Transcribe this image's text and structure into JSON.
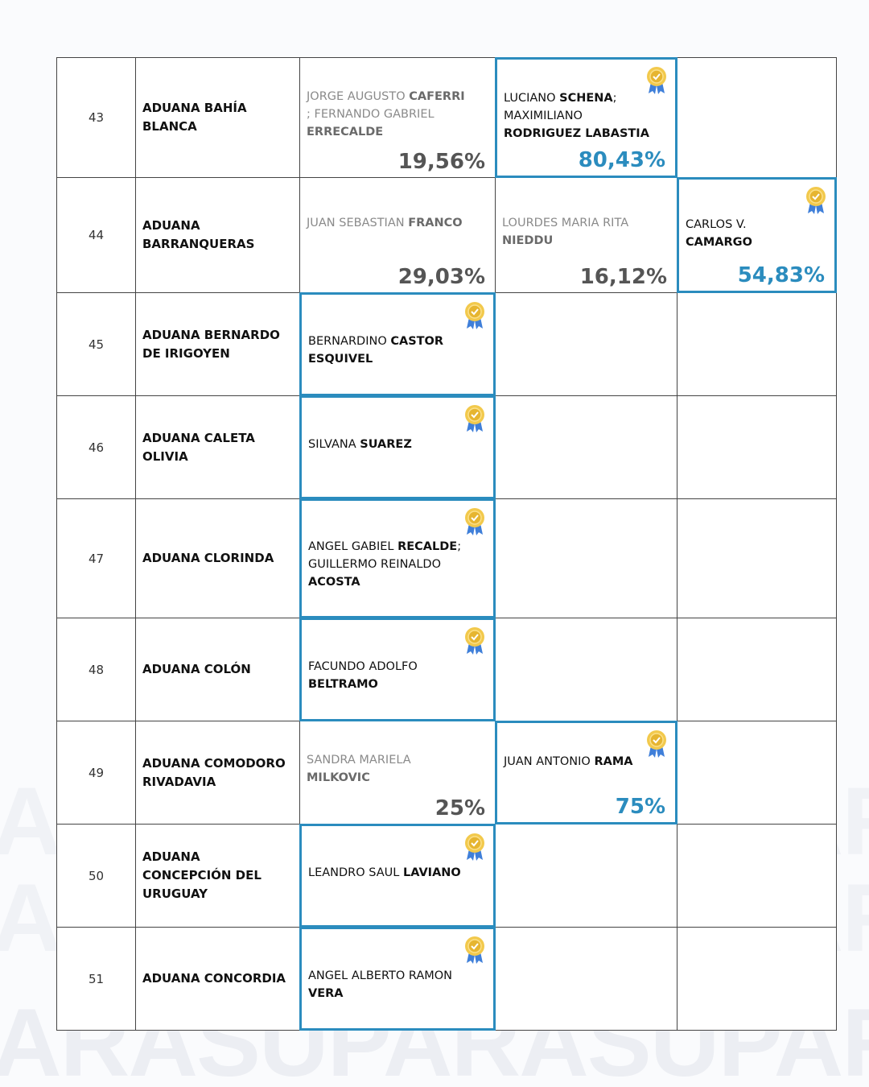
{
  "watermark": "ARASUPARASUPARA",
  "colors": {
    "winner": "#2b8cbe",
    "loser_text": "#8a8a8a"
  },
  "icons": {
    "winner": "award-badge-icon"
  },
  "rows": [
    {
      "num": "43",
      "aduana": "ADUANA BAHÍA BLANCA",
      "candidates": [
        {
          "col": 2,
          "winner": false,
          "pct": "19,56%",
          "parts": [
            {
              "t": "JORGE AUGUSTO "
            },
            {
              "t": "CAFERRI",
              "b": true
            },
            {
              "t": " ; FERNANDO GABRIEL "
            },
            {
              "t": "ERRECALDE",
              "b": true
            }
          ]
        },
        {
          "col": 3,
          "winner": true,
          "pct": "80,43%",
          "parts": [
            {
              "t": "LUCIANO "
            },
            {
              "t": "SCHENA",
              "b": true
            },
            {
              "t": "; MAXIMILIANO "
            },
            {
              "t": "RODRIGUEZ LABASTIA",
              "b": true
            }
          ]
        }
      ]
    },
    {
      "num": "44",
      "aduana": "ADUANA BARRANQUERAS",
      "candidates": [
        {
          "col": 2,
          "winner": false,
          "pct": "29,03%",
          "parts": [
            {
              "t": "JUAN SEBASTIAN "
            },
            {
              "t": "FRANCO",
              "b": true
            }
          ]
        },
        {
          "col": 3,
          "winner": false,
          "pct": "16,12%",
          "parts": [
            {
              "t": "LOURDES MARIA RITA "
            },
            {
              "t": "NIEDDU",
              "b": true
            }
          ]
        },
        {
          "col": 4,
          "winner": true,
          "pct": "54,83%",
          "parts": [
            {
              "t": "CARLOS V. "
            },
            {
              "t": "CAMARGO",
              "b": true
            }
          ]
        }
      ]
    },
    {
      "num": "45",
      "aduana": "ADUANA BERNARDO DE IRIGOYEN",
      "candidates": [
        {
          "col": 2,
          "winner": true,
          "parts": [
            {
              "t": "BERNARDINO "
            },
            {
              "t": "CASTOR ESQUIVEL",
              "b": true
            }
          ]
        }
      ]
    },
    {
      "num": "46",
      "aduana": "ADUANA CALETA OLIVIA",
      "candidates": [
        {
          "col": 2,
          "winner": true,
          "parts": [
            {
              "t": "SILVANA "
            },
            {
              "t": "SUAREZ",
              "b": true
            }
          ]
        }
      ]
    },
    {
      "num": "47",
      "aduana": "ADUANA CLORINDA",
      "candidates": [
        {
          "col": 2,
          "winner": true,
          "parts": [
            {
              "t": "ANGEL GABIEL "
            },
            {
              "t": "RECALDE",
              "b": true
            },
            {
              "t": "; GUILLERMO REINALDO "
            },
            {
              "t": "ACOSTA",
              "b": true
            }
          ]
        }
      ]
    },
    {
      "num": "48",
      "aduana": "ADUANA COLÓN",
      "candidates": [
        {
          "col": 2,
          "winner": true,
          "parts": [
            {
              "t": "FACUNDO ADOLFO "
            },
            {
              "t": "BELTRAMO",
              "b": true
            }
          ]
        }
      ]
    },
    {
      "num": "49",
      "aduana": "ADUANA COMODORO RIVADAVIA",
      "candidates": [
        {
          "col": 2,
          "winner": false,
          "pct": "25%",
          "parts": [
            {
              "t": "SANDRA MARIELA "
            },
            {
              "t": "MILKOVIC",
              "b": true
            }
          ]
        },
        {
          "col": 3,
          "winner": true,
          "pct": "75%",
          "parts": [
            {
              "t": "JUAN ANTONIO "
            },
            {
              "t": "RAMA",
              "b": true
            }
          ]
        }
      ]
    },
    {
      "num": "50",
      "aduana": "ADUANA CONCEPCIÓN DEL URUGUAY",
      "candidates": [
        {
          "col": 2,
          "winner": true,
          "parts": [
            {
              "t": "LEANDRO SAUL "
            },
            {
              "t": "LAVIANO",
              "b": true
            }
          ]
        }
      ]
    },
    {
      "num": "51",
      "aduana": "ADUANA CONCORDIA",
      "candidates": [
        {
          "col": 2,
          "winner": true,
          "parts": [
            {
              "t": "ANGEL ALBERTO RAMON "
            },
            {
              "t": "VERA",
              "b": true
            }
          ]
        }
      ]
    }
  ]
}
